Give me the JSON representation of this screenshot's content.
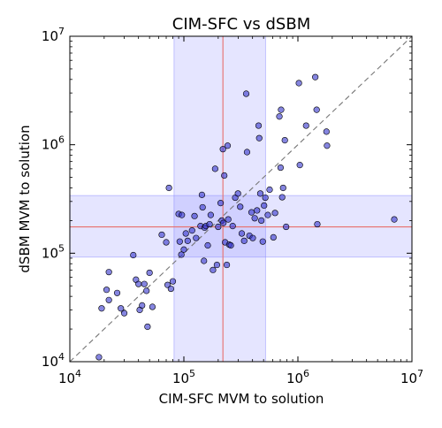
{
  "chart_data": {
    "type": "scatter",
    "title": "CIM-SFC vs dSBM",
    "xlabel": "CIM-SFC MVM to solution",
    "ylabel": "dSBM MVM to solution",
    "xscale": "log",
    "yscale": "log",
    "xlim": [
      10000,
      10000000
    ],
    "ylim": [
      10000,
      10000000
    ],
    "x_ticks": [
      {
        "value": 10000,
        "base": "10",
        "exp": "4"
      },
      {
        "value": 100000,
        "base": "10",
        "exp": "5"
      },
      {
        "value": 1000000,
        "base": "10",
        "exp": "6"
      },
      {
        "value": 10000000,
        "base": "10",
        "exp": "7"
      }
    ],
    "y_ticks": [
      {
        "value": 10000,
        "base": "10",
        "exp": "4"
      },
      {
        "value": 100000,
        "base": "10",
        "exp": "5"
      },
      {
        "value": 1000000,
        "base": "10",
        "exp": "6"
      },
      {
        "value": 10000000,
        "base": "10",
        "exp": "7"
      }
    ],
    "grid": false,
    "colors": {
      "points": "#3333cc",
      "bands": "#8a8aff",
      "median_lines": "#e8706c",
      "diagonal": "#777777"
    },
    "reference_lines": {
      "diagonal": "y = x",
      "x_median": 220000,
      "y_median": 175000
    },
    "bands": {
      "x_range": [
        82000,
        520000
      ],
      "y_range": [
        92000,
        340000
      ]
    },
    "points": [
      [
        18000,
        11000
      ],
      [
        19000,
        31000
      ],
      [
        21000,
        46000
      ],
      [
        22000,
        67000
      ],
      [
        22000,
        37000
      ],
      [
        26000,
        43000
      ],
      [
        28000,
        31000
      ],
      [
        30000,
        28000
      ],
      [
        36000,
        96000
      ],
      [
        38000,
        57000
      ],
      [
        40000,
        52000
      ],
      [
        41000,
        30000
      ],
      [
        43000,
        33000
      ],
      [
        45000,
        52000
      ],
      [
        47000,
        45000
      ],
      [
        48000,
        21000
      ],
      [
        50000,
        66000
      ],
      [
        53000,
        32000
      ],
      [
        64000,
        148000
      ],
      [
        70000,
        126000
      ],
      [
        72000,
        51000
      ],
      [
        74000,
        400000
      ],
      [
        77000,
        47000
      ],
      [
        80000,
        55000
      ],
      [
        90000,
        230000
      ],
      [
        92000,
        128000
      ],
      [
        95000,
        97000
      ],
      [
        96000,
        225000
      ],
      [
        100000,
        108000
      ],
      [
        104000,
        152000
      ],
      [
        108000,
        130000
      ],
      [
        118000,
        162000
      ],
      [
        124000,
        220000
      ],
      [
        128000,
        138000
      ],
      [
        140000,
        178000
      ],
      [
        144000,
        345000
      ],
      [
        146000,
        265000
      ],
      [
        150000,
        85000
      ],
      [
        152000,
        172000
      ],
      [
        156000,
        178000
      ],
      [
        162000,
        118000
      ],
      [
        168000,
        185000
      ],
      [
        172000,
        225000
      ],
      [
        180000,
        70000
      ],
      [
        188000,
        600000
      ],
      [
        195000,
        78000
      ],
      [
        200000,
        175000
      ],
      [
        210000,
        290000
      ],
      [
        215000,
        200000
      ],
      [
        220000,
        910000
      ],
      [
        222000,
        190000
      ],
      [
        226000,
        520000
      ],
      [
        230000,
        126000
      ],
      [
        238000,
        78000
      ],
      [
        242000,
        980000
      ],
      [
        245000,
        205000
      ],
      [
        250000,
        120000
      ],
      [
        258000,
        118000
      ],
      [
        268000,
        178000
      ],
      [
        282000,
        325000
      ],
      [
        298000,
        355000
      ],
      [
        312000,
        268000
      ],
      [
        322000,
        152000
      ],
      [
        338000,
        130000
      ],
      [
        352000,
        2950000
      ],
      [
        358000,
        855000
      ],
      [
        376000,
        145000
      ],
      [
        392000,
        238000
      ],
      [
        402000,
        138000
      ],
      [
        418000,
        210000
      ],
      [
        438000,
        248000
      ],
      [
        452000,
        1500000
      ],
      [
        458000,
        1150000
      ],
      [
        468000,
        355000
      ],
      [
        478000,
        200000
      ],
      [
        492000,
        128000
      ],
      [
        505000,
        275000
      ],
      [
        518000,
        325000
      ],
      [
        545000,
        225000
      ],
      [
        565000,
        385000
      ],
      [
        610000,
        140000
      ],
      [
        630000,
        235000
      ],
      [
        688000,
        1820000
      ],
      [
        712000,
        2100000
      ],
      [
        705000,
        615000
      ],
      [
        728000,
        328000
      ],
      [
        742000,
        400000
      ],
      [
        768000,
        1100000
      ],
      [
        788000,
        175000
      ],
      [
        1020000,
        3700000
      ],
      [
        1040000,
        650000
      ],
      [
        1180000,
        1500000
      ],
      [
        1420000,
        4200000
      ],
      [
        1460000,
        2100000
      ],
      [
        1480000,
        185000
      ],
      [
        1780000,
        1320000
      ],
      [
        1800000,
        980000
      ],
      [
        7000000,
        205000
      ]
    ]
  }
}
